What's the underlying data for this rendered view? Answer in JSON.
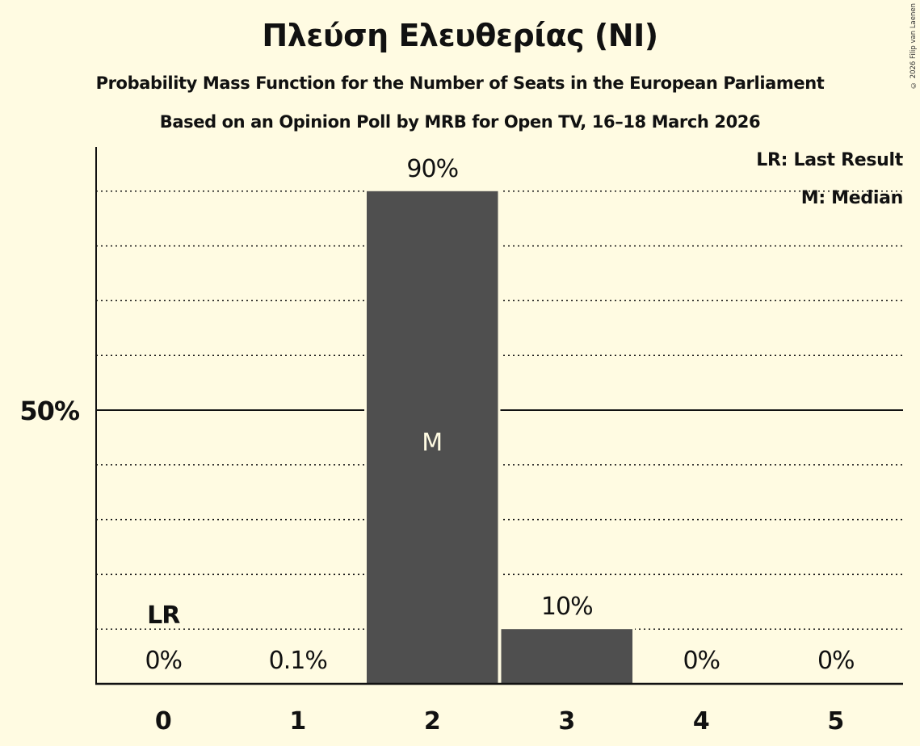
{
  "header": {
    "title": "Πλεύση Ελευθερίας (NI)",
    "subtitle": "Probability Mass Function for the Number of Seats in the European Parliament",
    "source_line": "Based on an Opinion Poll by MRB for Open TV, 16–18 March 2026",
    "copyright": "© 2026 Filip van Laenen"
  },
  "legend": {
    "last_result": "LR: Last Result",
    "median": "M: Median"
  },
  "colors": {
    "background": "#fffbe2",
    "bar": "#4f4f4f",
    "text": "#111111",
    "median_marker_text": "#fffbe2"
  },
  "chart_data": {
    "type": "bar",
    "title": "Πλεύση Ελευθερίας (NI)",
    "subtitle": "Probability Mass Function for the Number of Seats in the European Parliament",
    "xlabel": "",
    "ylabel": "",
    "categories": [
      "0",
      "1",
      "2",
      "3",
      "4",
      "5"
    ],
    "values": [
      0,
      0.1,
      90,
      10,
      0,
      0
    ],
    "value_labels": [
      "0%",
      "0.1%",
      "90%",
      "10%",
      "0%",
      "0%"
    ],
    "ylim": [
      0,
      100
    ],
    "y_ticks_labeled": [
      {
        "value": 50,
        "label": "50%"
      }
    ],
    "gridlines": [
      10,
      20,
      30,
      40,
      60,
      70,
      80,
      90
    ],
    "gridline_style": "dotted",
    "solid_line_at": 50,
    "annotations": [
      {
        "category": "0",
        "text": "LR",
        "meaning": "Last Result"
      },
      {
        "category": "2",
        "text": "M",
        "meaning": "Median"
      }
    ],
    "legend_position": "top-right"
  }
}
